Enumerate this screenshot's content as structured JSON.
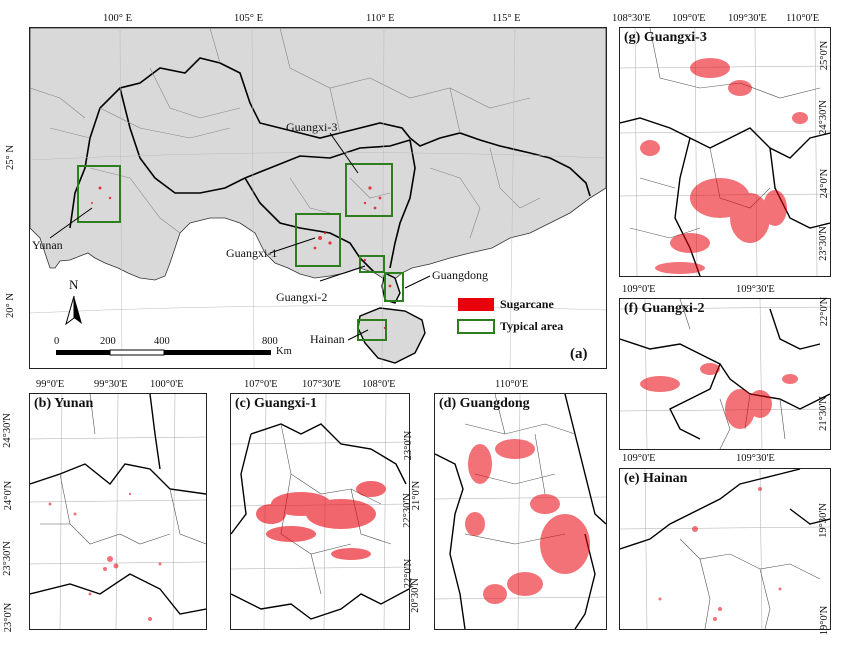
{
  "main_panel": {
    "label": "(a)",
    "top_ticks": [
      "100° E",
      "105° E",
      "110° E",
      "115° E"
    ],
    "left_ticks": [
      "25° N",
      "20° N"
    ],
    "area_labels": [
      "Yunan",
      "Guangxi-1",
      "Guangxi-2",
      "Guangxi-3",
      "Guangdong",
      "Hainan"
    ],
    "legend": {
      "sugarcane": "Sugarcane",
      "typical_area": "Typical area"
    },
    "scale": {
      "labels": [
        "0",
        "200",
        "400",
        "800"
      ],
      "unit": "Km"
    },
    "north": "N",
    "colors": {
      "land": "#d9d9d9",
      "sea": "#ffffff",
      "sugarcane": "#e8000b",
      "box": "#2e7d1e"
    }
  },
  "panels": {
    "b": {
      "title": "(b) Yunan",
      "bottom_ticks": [
        "99°0'E",
        "99°30'E",
        "100°0'E"
      ],
      "left_ticks": [
        "24°30'N",
        "24°0'N",
        "23°30'N",
        "23°0'N"
      ]
    },
    "c": {
      "title": "(c) Guangxi-1",
      "bottom_ticks": [
        "107°0'E",
        "107°30'E",
        "108°0'E"
      ],
      "right_ticks": [
        "23°0'N",
        "22°30'N",
        "22°0'N"
      ]
    },
    "d": {
      "title": "(d) Guangdong",
      "top_ticks": [
        "110°0'E"
      ],
      "left_ticks": [
        "21°0'N",
        "20°30'N"
      ]
    },
    "e": {
      "title": "(e) Hainan",
      "top_ticks": [
        "109°0'E",
        "109°30'E"
      ],
      "right_ticks": [
        "19°30'N",
        "19°0'N"
      ]
    },
    "f": {
      "title": "(f) Guangxi-2",
      "top_ticks": [
        "109°0'E",
        "109°30'E"
      ],
      "right_ticks": [
        "22°0'N",
        "21°30'N"
      ]
    },
    "g": {
      "title": "(g) Guangxi-3",
      "top_ticks": [
        "108°30'E",
        "109°0'E",
        "109°30'E",
        "110°0'E"
      ],
      "right_ticks": [
        "25°0'N",
        "24°30'N",
        "24°0'N",
        "23°30'N"
      ]
    }
  }
}
